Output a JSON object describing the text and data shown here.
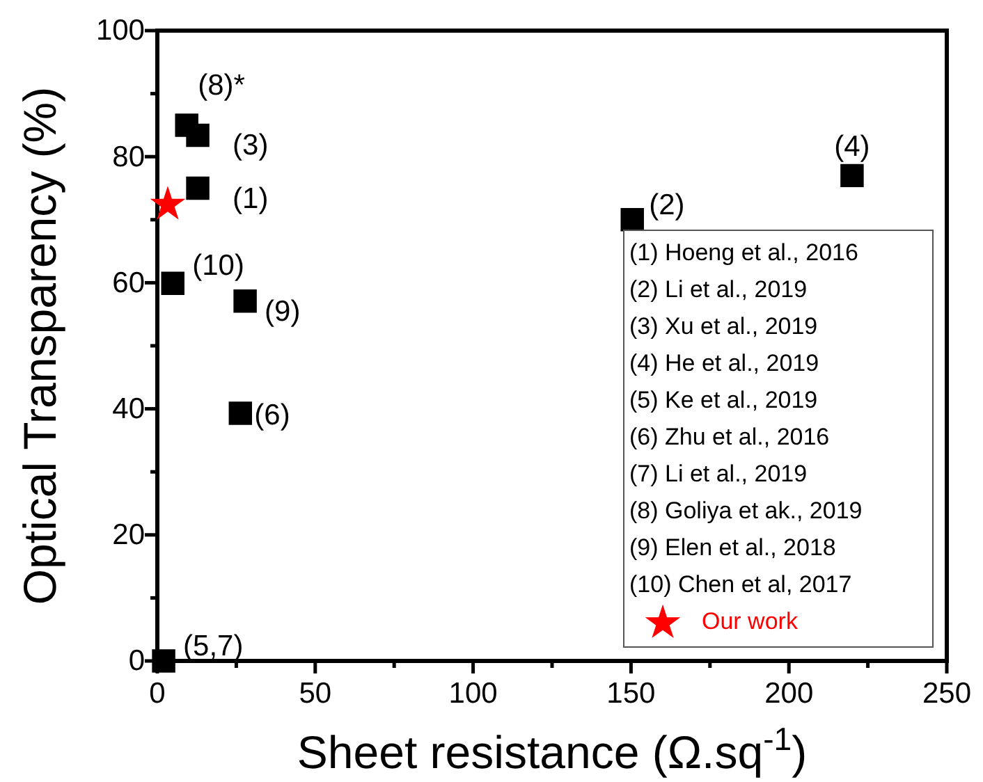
{
  "chart_data": {
    "type": "scatter",
    "xlabel": "Sheet resistance (Ω.sq$^{-1}$)",
    "ylabel": "Optical Transparency (%)",
    "xlim": [
      0,
      250
    ],
    "ylim": [
      0,
      100
    ],
    "xticks": [
      0,
      {
        "value": 25,
        "label": null
      },
      50,
      {
        "value": 75,
        "label": null
      },
      100,
      {
        "value": 125,
        "label": null
      },
      150,
      {
        "value": 175,
        "label": null
      },
      200,
      {
        "value": 225,
        "label": null
      },
      250
    ],
    "yticks": [
      0,
      {
        "value": 10,
        "label": null
      },
      20,
      {
        "value": 30,
        "label": null
      },
      40,
      {
        "value": 50,
        "label": null
      },
      60,
      {
        "value": 70,
        "label": null
      },
      80,
      {
        "value": 90,
        "label": null
      },
      100
    ],
    "grid": false,
    "legend": "bottom right",
    "marker": "square",
    "series": [
      {
        "color": "#000000",
        "x": [
          12.8,
          150.4,
          12.8,
          220,
          2,
          26.3,
          27.8,
          4.9
        ],
        "values": [
          75,
          70,
          83.4,
          77,
          0,
          39.3,
          57.1,
          59.9
        ]
      },
      {
        "color": "#000000",
        "x": [
          9.3
        ],
        "values": [
          85
        ]
      },
      {
        "name": "Our work",
        "color": "#ff0000",
        "marker": "star",
        "x": [
          3.3
        ],
        "values": [
          72.4
        ]
      }
    ],
    "annotations": [
      {
        "text": "(1)",
        "x": 12.8,
        "y": 75
      },
      {
        "text": "(2)",
        "x": 150.4,
        "y": 70
      },
      {
        "text": "(3)",
        "x": 12.8,
        "y": 83.4
      },
      {
        "text": "(4)",
        "x": 220,
        "y": 77
      },
      {
        "text": "(5,7)",
        "x": 2,
        "y": 0
      },
      {
        "text": "(6)",
        "x": 26.3,
        "y": 39.3
      },
      {
        "text": "(9)",
        "x": 27.8,
        "y": 57.1
      },
      {
        "text": "(10)",
        "x": 4.9,
        "y": 59.9
      },
      {
        "text": "(8)*",
        "x": 9.3,
        "y": 85
      },
      "(1) Hoeng et al., 2016",
      "(2) Li et al., 2019",
      "(3) Xu et al., 2019",
      "(4) He et al., 2019",
      "(5) Ke et al., 2019",
      "(6) Zhu et al., 2016",
      "(7) Li et al., 2019",
      "(8) Goliya et ak., 2019",
      "(9) Elen et al., 2018",
      "(10) Chen et al, 2017"
    ]
  }
}
